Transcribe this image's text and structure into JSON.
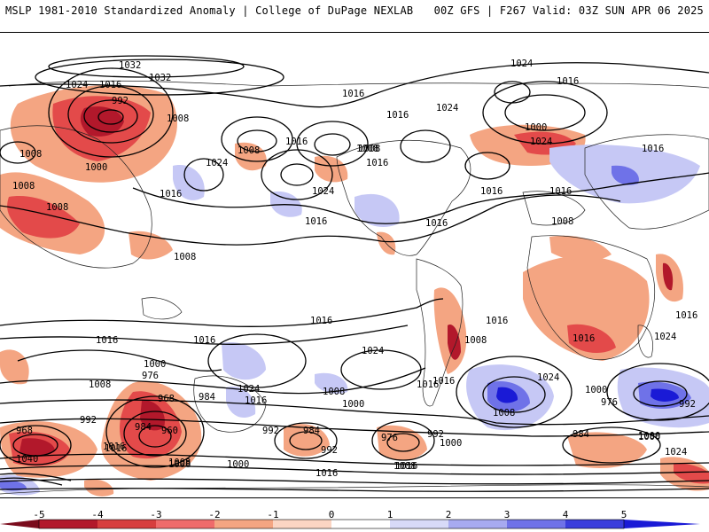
{
  "header": {
    "title": "MSLP 1981-2010 Standardized Anomaly | College of DuPage NEXLAB",
    "model_info": "00Z GFS | F267 Valid: 03Z SUN APR 06 2025"
  },
  "colors": {
    "neg_strong": "#b2182b",
    "neg_mid": "#e34a4a",
    "neg_light": "#f4a582",
    "pos_light": "#c6c8f5",
    "pos_mid": "#6f72e8",
    "pos_strong": "#1a1ad6",
    "contour": "#000000"
  },
  "map": {
    "contour_labels": [
      "1032",
      "1032",
      "1024",
      "1016",
      "992",
      "1008",
      "1000",
      "1008",
      "1024",
      "1016",
      "1008",
      "1008",
      "1016",
      "1024",
      "1016",
      "1016",
      "1008",
      "1016",
      "1016",
      "1024",
      "1016",
      "1008",
      "1016",
      "1016",
      "1024",
      "1016",
      "1000",
      "1024",
      "1016",
      "1016",
      "1016",
      "1024",
      "1016",
      "1008",
      "1008",
      "1008",
      "1016",
      "1016",
      "1016",
      "1016",
      "1024",
      "1000",
      "976",
      "968",
      "984",
      "984",
      "960",
      "1008",
      "1016",
      "1024",
      "1016",
      "1008",
      "1000",
      "992",
      "984",
      "976",
      "992",
      "992",
      "1000",
      "1008",
      "1000",
      "1024",
      "1000",
      "976",
      "992",
      "984",
      "1000",
      "1024",
      "1016",
      "1008",
      "968",
      "992",
      "1040",
      "1016",
      "1008",
      "1000",
      "1008",
      "1016",
      "1008",
      "1016"
    ]
  },
  "colorbar": {
    "ticks": [
      "-5",
      "-4",
      "-3",
      "-2",
      "-1",
      "0",
      "1",
      "2",
      "3",
      "4",
      "5"
    ]
  }
}
